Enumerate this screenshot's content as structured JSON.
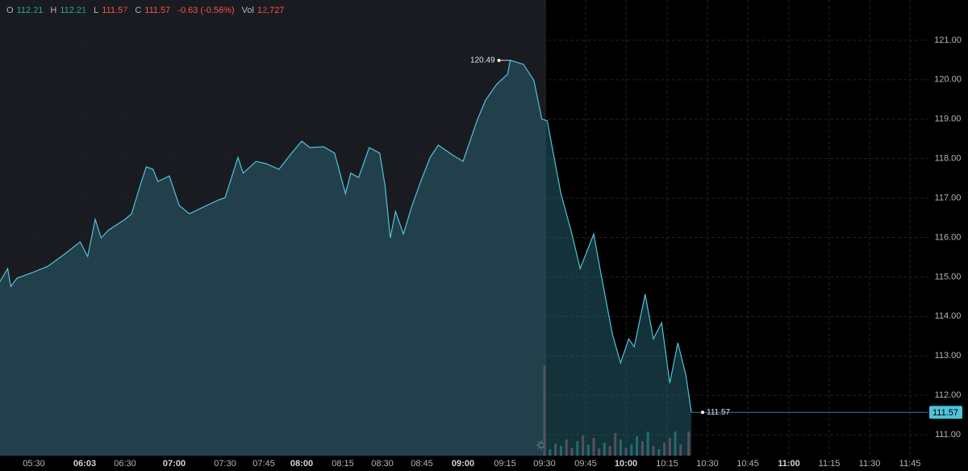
{
  "header": {
    "items": [
      {
        "label": "O",
        "value": "112.21",
        "color": "#26a69a"
      },
      {
        "label": "H",
        "value": "112.21",
        "color": "#26a69a"
      },
      {
        "label": "L",
        "value": "111.57",
        "color": "#ef5350"
      },
      {
        "label": "C",
        "value": "111.57",
        "color": "#ef5350"
      },
      {
        "label": "",
        "value": "-0.63 (-0.56%)",
        "color": "#ef5350"
      },
      {
        "label": "Vol",
        "value": "12,727",
        "color": "#ef5350"
      }
    ]
  },
  "chart_data": {
    "type": "area",
    "color": "#4fc3d9",
    "fill": "#2a6f80",
    "x": [
      "05:07",
      "05:13",
      "05:15",
      "05:19",
      "05:29",
      "05:39",
      "05:50",
      "06:00",
      "06:05",
      "06:10",
      "06:14",
      "06:19",
      "06:30",
      "06:34",
      "06:40",
      "06:43",
      "06:47",
      "06:50",
      "06:57",
      "07:03",
      "07:09",
      "07:19",
      "07:26",
      "07:30",
      "07:35",
      "07:37",
      "07:42",
      "07:46",
      "07:51",
      "07:56",
      "08:00",
      "08:03",
      "08:08",
      "08:12",
      "08:16",
      "08:18",
      "08:21",
      "08:25",
      "08:29",
      "08:31",
      "08:33",
      "08:35",
      "08:38",
      "08:41",
      "08:44",
      "08:48",
      "08:51",
      "08:56",
      "09:00",
      "09:05",
      "09:08",
      "09:12",
      "09:16",
      "09:17",
      "09:22",
      "09:26",
      "09:29",
      "09:31",
      "09:36",
      "09:40",
      "09:43",
      "09:48",
      "09:51",
      "09:55",
      "09:58",
      "10:01",
      "10:03",
      "10:07",
      "10:10",
      "10:13",
      "10:16",
      "10:19",
      "10:22",
      "10:24"
    ],
    "values": [
      114.82,
      115.21,
      114.76,
      114.97,
      115.11,
      115.27,
      115.58,
      115.89,
      115.52,
      116.46,
      115.99,
      116.19,
      116.46,
      116.6,
      117.42,
      117.79,
      117.73,
      117.42,
      117.56,
      116.81,
      116.6,
      116.81,
      116.95,
      117.01,
      118.03,
      117.63,
      117.93,
      117.87,
      117.73,
      118.14,
      118.44,
      118.28,
      118.3,
      118.14,
      117.11,
      117.63,
      117.52,
      118.28,
      118.14,
      117.32,
      115.99,
      116.66,
      116.09,
      116.75,
      117.32,
      118.03,
      118.34,
      118.1,
      117.93,
      118.96,
      119.47,
      119.88,
      120.14,
      120.49,
      120.39,
      119.98,
      119.0,
      118.96,
      117.11,
      116.09,
      115.21,
      116.09,
      114.97,
      113.54,
      112.82,
      113.43,
      113.23,
      114.56,
      113.43,
      113.84,
      112.31,
      113.33,
      112.51,
      111.57
    ],
    "ylim": [
      110.47,
      122.02
    ],
    "yticks": [
      {
        "value": 111,
        "label": "111.00"
      },
      {
        "value": 112,
        "label": "112.00"
      },
      {
        "value": 113,
        "label": "113.00"
      },
      {
        "value": 114,
        "label": "114.00"
      },
      {
        "value": 115,
        "label": "115.00"
      },
      {
        "value": 116,
        "label": "116.00"
      },
      {
        "value": 117,
        "label": "117.00"
      },
      {
        "value": 118,
        "label": "118.00"
      },
      {
        "value": 119,
        "label": "119.00"
      },
      {
        "value": 120,
        "label": "120.00"
      },
      {
        "value": 121,
        "label": "121.00"
      }
    ],
    "xticks": [
      "05:30",
      "06:03",
      "06:30",
      "07:00",
      "07:30",
      "07:45",
      "08:00",
      "08:15",
      "08:30",
      "08:45",
      "09:00",
      "09:15",
      "09:30",
      "09:45",
      "10:00",
      "10:15",
      "10:30",
      "10:45",
      "11:00",
      "11:15",
      "11:30",
      "11:45"
    ],
    "grid": true,
    "volume": {
      "x": [
        "09:30",
        "09:32",
        "09:34",
        "09:36",
        "09:38",
        "09:40",
        "09:42",
        "09:44",
        "09:46",
        "09:48",
        "09:50",
        "09:52",
        "09:54",
        "09:56",
        "09:58",
        "10:00",
        "10:02",
        "10:04",
        "10:06",
        "10:08",
        "10:10",
        "10:12",
        "10:14",
        "10:16",
        "10:18",
        "10:20",
        "10:23"
      ],
      "values": [
        47500,
        3400,
        6400,
        5100,
        8500,
        4200,
        7600,
        10600,
        5900,
        9300,
        3800,
        6800,
        5100,
        11900,
        8500,
        4200,
        5900,
        10200,
        7600,
        12700,
        5100,
        3400,
        6800,
        9300,
        12700,
        5900,
        12727
      ],
      "colors": [
        "#7a3b3b",
        "#1f6b60",
        "#7a3b3b",
        "#1f6b60",
        "#7a3b3b",
        "#7a3b3b",
        "#1f6b60",
        "#7a3b3b",
        "#1f6b60",
        "#7a3b3b",
        "#7a3b3b",
        "#1f6b60",
        "#7a3b3b",
        "#7a3b3b",
        "#1f6b60",
        "#7a3b3b",
        "#1f6b60",
        "#1f6b60",
        "#7a3b3b",
        "#1f6b60",
        "#7a3b3b",
        "#1f6b60",
        "#7a3b3b",
        "#7a3b3b",
        "#1f6b60",
        "#7a3b3b",
        "#7a3b3b"
      ]
    }
  }
}
